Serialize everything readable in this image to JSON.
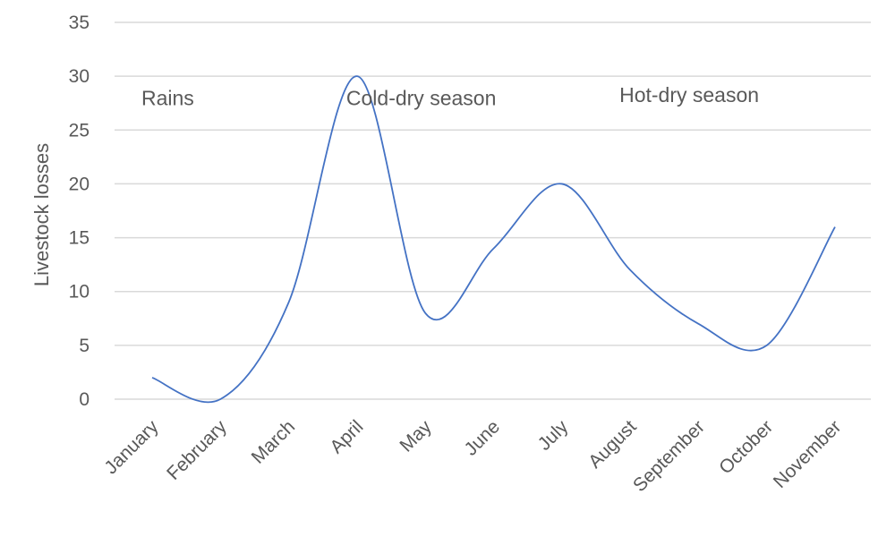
{
  "chart_data": {
    "type": "line",
    "title": "",
    "xlabel": "",
    "ylabel": "Livestock losses",
    "ylim": [
      0,
      35
    ],
    "yticks": [
      0,
      5,
      10,
      15,
      20,
      25,
      30,
      35
    ],
    "grid": true,
    "smooth": true,
    "line_color": "#4472C4",
    "categories": [
      "January",
      "February",
      "March",
      "April",
      "May",
      "June",
      "July",
      "August",
      "September",
      "October",
      "November"
    ],
    "series": [
      {
        "values": [
          2,
          0,
          9,
          30,
          8,
          14,
          20,
          12,
          7,
          5,
          16
        ]
      }
    ],
    "annotations": [
      {
        "text": "Rains",
        "x": "January",
        "y": 27.3
      },
      {
        "text": "Cold-dry season",
        "x": "April",
        "y": 27.3
      },
      {
        "text": "Hot-dry season",
        "x": "August",
        "y": 27.6
      }
    ]
  }
}
